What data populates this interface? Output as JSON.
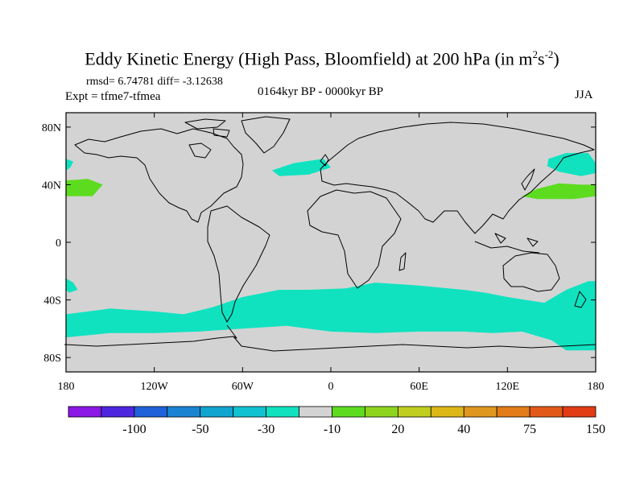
{
  "title": {
    "main": "Eddy Kinetic Energy (High Pass, Bloomfield) at 200 hPa (in m",
    "sup1": "2",
    "mid": "s",
    "sup2": "-2",
    "end": ")"
  },
  "stats": "rmsd= 6.74781 diff= -3.12638",
  "expt": "Expt = tfme7-tfmea",
  "period": "0164kyr BP - 0000kyr BP",
  "season": "JJA",
  "map": {
    "background_color": "#d3d3d3",
    "coastline_color": "#000000",
    "lon_range": [
      -180,
      180
    ],
    "lat_range": [
      -90,
      90
    ],
    "lon_ticks": [
      {
        "value": -180,
        "label": "180"
      },
      {
        "value": -120,
        "label": "120W"
      },
      {
        "value": -60,
        "label": "60W"
      },
      {
        "value": 0,
        "label": "0"
      },
      {
        "value": 60,
        "label": "60E"
      },
      {
        "value": 120,
        "label": "120E"
      },
      {
        "value": 180,
        "label": "180"
      }
    ],
    "lat_ticks": [
      {
        "value": 80,
        "label": "80N"
      },
      {
        "value": 40,
        "label": "40N"
      },
      {
        "value": 0,
        "label": "0"
      },
      {
        "value": -40,
        "label": "40S"
      },
      {
        "value": -80,
        "label": "80S"
      }
    ],
    "anomaly_regions": [
      {
        "name": "north-atlantic-negative",
        "color": "#10e2c0",
        "lonlat": [
          [
            -40,
            50
          ],
          [
            -25,
            55
          ],
          [
            -5,
            58
          ],
          [
            0,
            52
          ],
          [
            -15,
            47
          ],
          [
            -35,
            46
          ]
        ]
      },
      {
        "name": "north-pacific-negative",
        "color": "#10e2c0",
        "lonlat": [
          [
            148,
            58
          ],
          [
            160,
            62
          ],
          [
            175,
            62
          ],
          [
            180,
            55
          ],
          [
            180,
            48
          ],
          [
            170,
            46
          ],
          [
            155,
            49
          ],
          [
            147,
            53
          ]
        ]
      },
      {
        "name": "north-pacific-west-edge-negative",
        "color": "#10e2c0",
        "lonlat": [
          [
            -180,
            58
          ],
          [
            -175,
            56
          ],
          [
            -177,
            52
          ],
          [
            -180,
            50
          ]
        ]
      },
      {
        "name": "north-pacific-east-positive",
        "color": "#5ddc1f",
        "lonlat": [
          [
            -180,
            43
          ],
          [
            -165,
            44
          ],
          [
            -155,
            40
          ],
          [
            -162,
            32
          ],
          [
            -180,
            32
          ]
        ]
      },
      {
        "name": "north-pacific-west-positive",
        "color": "#5ddc1f",
        "lonlat": [
          [
            130,
            32
          ],
          [
            140,
            37
          ],
          [
            155,
            41
          ],
          [
            170,
            40
          ],
          [
            180,
            40
          ],
          [
            180,
            32
          ],
          [
            165,
            30
          ],
          [
            140,
            30
          ]
        ]
      },
      {
        "name": "south-pacific-small-negative",
        "color": "#10e2c0",
        "lonlat": [
          [
            -180,
            -25
          ],
          [
            -175,
            -28
          ],
          [
            -172,
            -33
          ],
          [
            -178,
            -35
          ],
          [
            -180,
            -33
          ]
        ]
      },
      {
        "name": "southern-ocean-band-negative",
        "color": "#10e2c0",
        "lonlat": [
          [
            -180,
            -50
          ],
          [
            -150,
            -46
          ],
          [
            -120,
            -48
          ],
          [
            -100,
            -50
          ],
          [
            -80,
            -45
          ],
          [
            -60,
            -38
          ],
          [
            -35,
            -33
          ],
          [
            -15,
            -33
          ],
          [
            10,
            -32
          ],
          [
            30,
            -28
          ],
          [
            60,
            -30
          ],
          [
            90,
            -33
          ],
          [
            105,
            -35
          ],
          [
            120,
            -38
          ],
          [
            145,
            -42
          ],
          [
            160,
            -33
          ],
          [
            175,
            -27
          ],
          [
            180,
            -27
          ],
          [
            180,
            -75
          ],
          [
            160,
            -75
          ],
          [
            150,
            -68
          ],
          [
            130,
            -62
          ],
          [
            110,
            -63
          ],
          [
            90,
            -62
          ],
          [
            60,
            -62
          ],
          [
            30,
            -63
          ],
          [
            0,
            -62
          ],
          [
            -30,
            -58
          ],
          [
            -60,
            -60
          ],
          [
            -90,
            -62
          ],
          [
            -120,
            -63
          ],
          [
            -150,
            -63
          ],
          [
            -180,
            -66
          ]
        ]
      }
    ]
  },
  "colorbar": {
    "colors": [
      "#8a17e5",
      "#4e26e0",
      "#2060d8",
      "#1a84d3",
      "#10a4d0",
      "#10c2d0",
      "#10e2c0",
      "#d3d3d3",
      "#5ddc1f",
      "#8ed41e",
      "#bfcd1e",
      "#dcb816",
      "#e0971f",
      "#e27b18",
      "#e25a18",
      "#e23c14"
    ],
    "labels": [
      {
        "after_box": 2,
        "text": "-100"
      },
      {
        "after_box": 4,
        "text": "-50"
      },
      {
        "after_box": 6,
        "text": "-30"
      },
      {
        "after_box": 8,
        "text": "-10"
      },
      {
        "after_box": 10,
        "text": "20"
      },
      {
        "after_box": 12,
        "text": "40"
      },
      {
        "after_box": 14,
        "text": "75"
      },
      {
        "after_box": 16,
        "text": "150"
      }
    ]
  }
}
